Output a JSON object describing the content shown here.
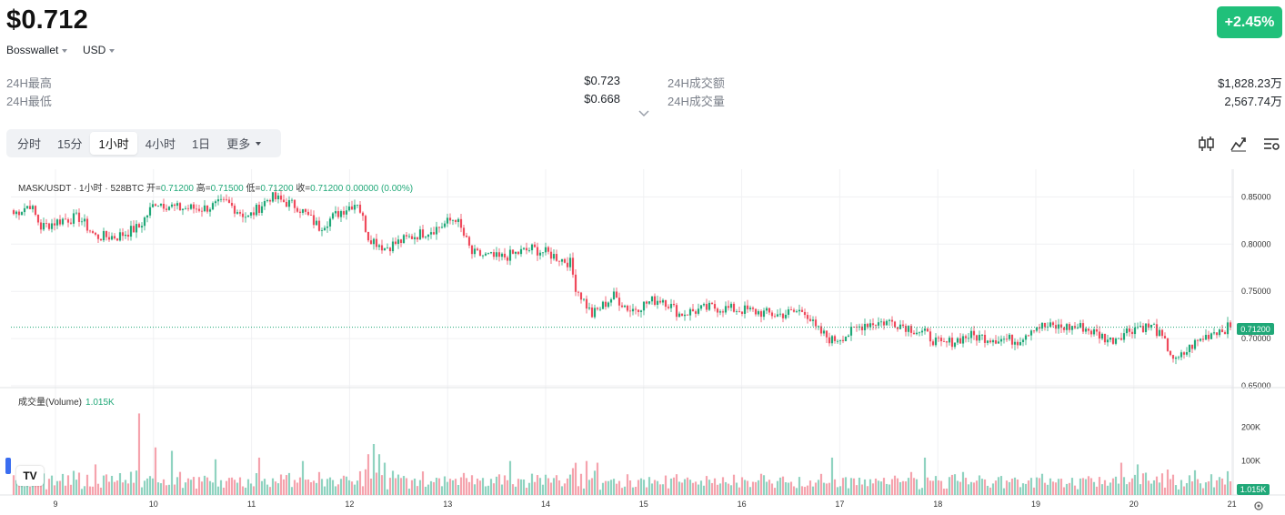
{
  "ticker": {
    "price": "$0.712",
    "change": "+2.45%",
    "exchange": "Bosswallet",
    "currency": "USD"
  },
  "stats": {
    "high_label": "24H最高",
    "high_value": "$0.723",
    "low_label": "24H最低",
    "low_value": "$0.668",
    "turnover_label": "24H成交额",
    "turnover_value": "$1,828.23万",
    "volume_label": "24H成交量",
    "volume_value": "2,567.74万"
  },
  "intervals": [
    "分时",
    "15分",
    "1小时",
    "4小时",
    "1日",
    "更多"
  ],
  "active_interval": "1小时",
  "toolbar_icons": [
    "candlestick-icon",
    "indicator-icon",
    "settings-list-icon"
  ],
  "chart_data": {
    "type": "candlestick",
    "legend": {
      "symbol": "MASK/USDT · 1小时 · 528BTC",
      "open_label": "开=",
      "open": "0.71200",
      "high_label": "高=",
      "high": "0.71500",
      "low_label": "低=",
      "low": "0.71200",
      "close_label": "收=",
      "close": "0.71200",
      "change": "0.00000 (0.00%)"
    },
    "volume_legend": {
      "label": "成交量(Volume)",
      "value": "1.015K"
    },
    "x_ticks": [
      "9",
      "10",
      "11",
      "12",
      "13",
      "14",
      "15",
      "16",
      "17",
      "18",
      "19",
      "20",
      "21"
    ],
    "y_ticks": [
      "0.85000",
      "0.80000",
      "0.75000",
      "0.70000",
      "0.65000"
    ],
    "ylim": [
      0.65,
      0.86
    ],
    "volume_ticks": [
      "200K",
      "100K"
    ],
    "last_price": "0.71200",
    "last_volume": "1.015K",
    "colors": {
      "up": "#20a878",
      "down": "#ef4a5c",
      "up_vol": "#8fd3c0",
      "down_vol": "#f5a3ad"
    },
    "trend": [
      [
        0,
        0.832
      ],
      [
        6,
        0.842
      ],
      [
        10,
        0.818
      ],
      [
        18,
        0.826
      ],
      [
        24,
        0.828
      ],
      [
        30,
        0.808
      ],
      [
        38,
        0.808
      ],
      [
        46,
        0.818
      ],
      [
        52,
        0.845
      ],
      [
        60,
        0.838
      ],
      [
        70,
        0.838
      ],
      [
        78,
        0.844
      ],
      [
        86,
        0.828
      ],
      [
        94,
        0.85
      ],
      [
        104,
        0.84
      ],
      [
        112,
        0.818
      ],
      [
        120,
        0.835
      ],
      [
        126,
        0.845
      ],
      [
        130,
        0.808
      ],
      [
        136,
        0.796
      ],
      [
        146,
        0.808
      ],
      [
        156,
        0.818
      ],
      [
        162,
        0.828
      ],
      [
        168,
        0.79
      ],
      [
        178,
        0.785
      ],
      [
        190,
        0.795
      ],
      [
        196,
        0.79
      ],
      [
        204,
        0.78
      ],
      [
        206,
        0.755
      ],
      [
        212,
        0.725
      ],
      [
        220,
        0.745
      ],
      [
        226,
        0.73
      ],
      [
        234,
        0.74
      ],
      [
        238,
        0.742
      ],
      [
        244,
        0.726
      ],
      [
        256,
        0.733
      ],
      [
        268,
        0.73
      ],
      [
        280,
        0.725
      ],
      [
        290,
        0.73
      ],
      [
        294,
        0.71
      ],
      [
        300,
        0.698
      ],
      [
        306,
        0.705
      ],
      [
        312,
        0.716
      ],
      [
        322,
        0.718
      ],
      [
        328,
        0.712
      ],
      [
        334,
        0.705
      ],
      [
        340,
        0.693
      ],
      [
        350,
        0.703
      ],
      [
        360,
        0.7
      ],
      [
        368,
        0.698
      ],
      [
        374,
        0.713
      ],
      [
        384,
        0.712
      ],
      [
        392,
        0.712
      ],
      [
        402,
        0.698
      ],
      [
        408,
        0.708
      ],
      [
        412,
        0.713
      ],
      [
        418,
        0.712
      ],
      [
        422,
        0.695
      ],
      [
        426,
        0.675
      ],
      [
        432,
        0.693
      ],
      [
        440,
        0.708
      ],
      [
        446,
        0.712
      ]
    ],
    "volume_spikes": [
      [
        46,
        240
      ],
      [
        52,
        140
      ],
      [
        58,
        130
      ],
      [
        30,
        90
      ],
      [
        74,
        105
      ],
      [
        90,
        110
      ],
      [
        106,
        100
      ],
      [
        130,
        120
      ],
      [
        132,
        150
      ],
      [
        134,
        120
      ],
      [
        136,
        95
      ],
      [
        182,
        100
      ],
      [
        210,
        100
      ],
      [
        214,
        95
      ],
      [
        300,
        110
      ],
      [
        334,
        110
      ],
      [
        406,
        95
      ],
      [
        412,
        90
      ]
    ]
  }
}
